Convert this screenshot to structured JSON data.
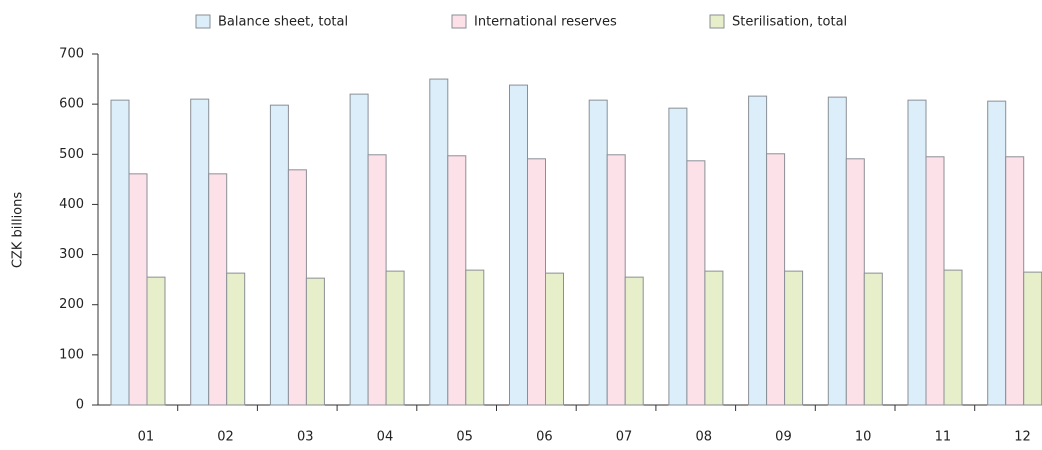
{
  "chart_data": {
    "type": "bar",
    "ylabel": "CZK billions",
    "categories": [
      "01",
      "02",
      "03",
      "04",
      "05",
      "06",
      "07",
      "08",
      "09",
      "10",
      "11",
      "12"
    ],
    "series": [
      {
        "name": "Balance sheet, total",
        "color": "#dbeefa",
        "values": [
          608,
          610,
          598,
          620,
          650,
          638,
          608,
          592,
          616,
          614,
          608,
          606
        ]
      },
      {
        "name": "International reserves",
        "color": "#fde1e9",
        "values": [
          461,
          461,
          469,
          499,
          497,
          491,
          499,
          487,
          501,
          491,
          495,
          495
        ]
      },
      {
        "name": "Sterilisation, total",
        "color": "#e7efca",
        "values": [
          255,
          263,
          253,
          267,
          269,
          263,
          255,
          267,
          267,
          263,
          269,
          265
        ]
      }
    ],
    "ylim": [
      0,
      700
    ],
    "yticks": [
      0,
      100,
      200,
      300,
      400,
      500,
      600,
      700
    ],
    "grid": false,
    "legend": "top"
  }
}
